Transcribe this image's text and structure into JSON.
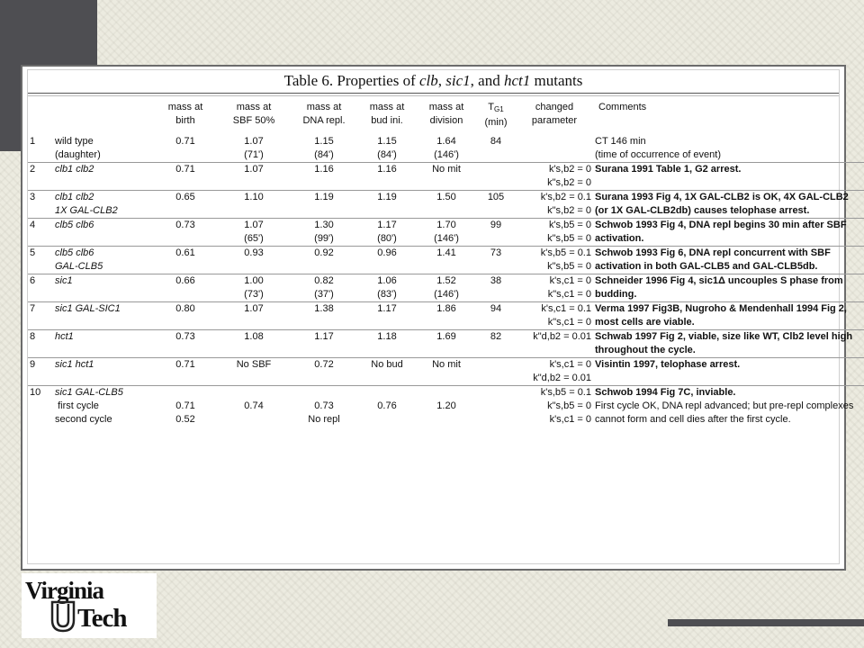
{
  "title": "Table 6.  Properties of clb, sic1, and hct1 mutants",
  "title_parts": {
    "prefix": "Table 6.  Properties of ",
    "clb": "clb",
    "sep1": ", ",
    "sic1": "sic1",
    "sep2": ", and ",
    "hct1": "hct1",
    "suffix": " mutants"
  },
  "headers": {
    "birth": [
      "mass at",
      "birth"
    ],
    "sbf": [
      "mass at",
      "SBF 50%"
    ],
    "dna": [
      "mass at",
      "DNA repl."
    ],
    "bud": [
      "mass at",
      "bud ini."
    ],
    "division": [
      "mass at",
      "division"
    ],
    "tg1": [
      "T",
      "G1",
      "(min)"
    ],
    "param": [
      "changed",
      "parameter"
    ],
    "comments": "Comments"
  },
  "rows": [
    {
      "num": "1",
      "name": [
        "wild type",
        "(daughter)"
      ],
      "name_italic": false,
      "birth": [
        "0.71",
        ""
      ],
      "sbf": [
        "1.07",
        "(71')"
      ],
      "dna": [
        "1.15",
        "(84')"
      ],
      "bud": [
        "1.15",
        "(84')"
      ],
      "division": [
        "1.64",
        "(146')"
      ],
      "tg1": "84",
      "param": [
        "",
        ""
      ],
      "comments": [
        "CT 146 min",
        "(time of occurrence of event)"
      ],
      "comments_bold": false
    },
    {
      "num": "2",
      "name": [
        "clb1 clb2",
        ""
      ],
      "name_italic": true,
      "birth": [
        "0.71",
        ""
      ],
      "sbf": [
        "1.07",
        ""
      ],
      "dna": [
        "1.16",
        ""
      ],
      "bud": [
        "1.16",
        ""
      ],
      "division": [
        "No mit",
        ""
      ],
      "tg1": "",
      "param": [
        "k's,b2 = 0",
        "k\"s,b2 = 0"
      ],
      "comments": [
        "Surana 1991 Table 1, G2 arrest.",
        ""
      ],
      "comments_bold": true
    },
    {
      "num": "3",
      "name": [
        "clb1 clb2",
        "1X GAL-CLB2"
      ],
      "name_italic": true,
      "birth": [
        "0.65",
        ""
      ],
      "sbf": [
        "1.10",
        ""
      ],
      "dna": [
        "1.19",
        ""
      ],
      "bud": [
        "1.19",
        ""
      ],
      "division": [
        "1.50",
        ""
      ],
      "tg1": "105",
      "param": [
        "k's,b2 = 0.1",
        "k\"s,b2 = 0"
      ],
      "comments": [
        "Surana 1993 Fig 4, 1X GAL-CLB2 is OK, 4X GAL-CLB2",
        "(or 1X GAL-CLB2db) causes telophase arrest."
      ],
      "comments_bold": true
    },
    {
      "num": "4",
      "name": [
        "clb5 clb6",
        ""
      ],
      "name_italic": true,
      "birth": [
        "0.73",
        ""
      ],
      "sbf": [
        "1.07",
        "(65')"
      ],
      "dna": [
        "1.30",
        "(99')"
      ],
      "bud": [
        "1.17",
        "(80')"
      ],
      "division": [
        "1.70",
        "(146')"
      ],
      "tg1": "99",
      "param": [
        "k's,b5 = 0",
        "k\"s,b5 = 0"
      ],
      "comments": [
        "Schwob 1993 Fig 4, DNA repl begins 30 min after SBF",
        "activation."
      ],
      "comments_bold": true
    },
    {
      "num": "5",
      "name": [
        "clb5 clb6",
        "GAL-CLB5"
      ],
      "name_italic": true,
      "birth": [
        "0.61",
        ""
      ],
      "sbf": [
        "0.93",
        ""
      ],
      "dna": [
        "0.92",
        ""
      ],
      "bud": [
        "0.96",
        ""
      ],
      "division": [
        "1.41",
        ""
      ],
      "tg1": "73",
      "param": [
        "k's,b5 = 0.1",
        "k\"s,b5 = 0"
      ],
      "comments": [
        "Schwob 1993 Fig 6, DNA repl concurrent with SBF",
        "activation in both GAL-CLB5 and GAL-CLB5db."
      ],
      "comments_bold": true
    },
    {
      "num": "6",
      "name": [
        "sic1",
        ""
      ],
      "name_italic": true,
      "birth": [
        "0.66",
        ""
      ],
      "sbf": [
        "1.00",
        "(73')"
      ],
      "dna": [
        "0.82",
        "(37')"
      ],
      "bud": [
        "1.06",
        "(83')"
      ],
      "division": [
        "1.52",
        "(146')"
      ],
      "tg1": "38",
      "param": [
        "k's,c1 = 0",
        "k\"s,c1 = 0"
      ],
      "comments": [
        "Schneider 1996 Fig 4, sic1Δ uncouples S phase from",
        "budding."
      ],
      "comments_bold": true
    },
    {
      "num": "7",
      "name": [
        "sic1 GAL-SIC1",
        ""
      ],
      "name_italic": true,
      "birth": [
        "0.80",
        ""
      ],
      "sbf": [
        "1.07",
        ""
      ],
      "dna": [
        "1.38",
        ""
      ],
      "bud": [
        "1.17",
        ""
      ],
      "division": [
        "1.86",
        ""
      ],
      "tg1": "94",
      "param": [
        "k's,c1 = 0.1",
        "k\"s,c1 = 0"
      ],
      "comments": [
        "Verma 1997 Fig3B, Nugroho & Mendenhall 1994 Fig 2,",
        "most cells are viable."
      ],
      "comments_bold": true
    },
    {
      "num": "8",
      "name": [
        "hct1",
        ""
      ],
      "name_italic": true,
      "birth": [
        "0.73",
        ""
      ],
      "sbf": [
        "1.08",
        ""
      ],
      "dna": [
        "1.17",
        ""
      ],
      "bud": [
        "1.18",
        ""
      ],
      "division": [
        "1.69",
        ""
      ],
      "tg1": "82",
      "param": [
        "k\"d,b2 = 0.01",
        ""
      ],
      "comments": [
        "Schwab 1997 Fig 2, viable, size like WT, Clb2 level high",
        "throughout the cycle."
      ],
      "comments_bold": true
    },
    {
      "num": "9",
      "name": [
        "sic1 hct1",
        ""
      ],
      "name_italic": true,
      "birth": [
        "0.71",
        ""
      ],
      "sbf": [
        "No SBF",
        ""
      ],
      "dna": [
        "0.72",
        ""
      ],
      "bud": [
        "No bud",
        ""
      ],
      "division": [
        "No mit",
        ""
      ],
      "tg1": "",
      "param": [
        "k's,c1 = 0",
        "k\"d,b2 = 0.01"
      ],
      "comments": [
        "Visintin 1997, telophase arrest.",
        ""
      ],
      "comments_bold": true
    }
  ],
  "row10": {
    "num": "10",
    "name": "sic1 GAL-CLB5",
    "sub1": "first cycle",
    "sub2": "second cycle",
    "birth": [
      "",
      "0.71",
      "0.52"
    ],
    "sbf": [
      "",
      "0.74",
      ""
    ],
    "dna": [
      "",
      "0.73",
      "No repl"
    ],
    "bud": [
      "",
      "0.76",
      ""
    ],
    "division": [
      "",
      "1.20",
      ""
    ],
    "param": [
      "k's,b5 = 0.1",
      "k\"s,b5 = 0",
      "k's,c1 = 0"
    ],
    "comment1": "Schwob 1994 Fig 7C, inviable.",
    "comment2": "First cycle OK, DNA repl advanced; but pre-repl complexes",
    "comment3": "cannot form and cell dies after the first cycle."
  },
  "logo": {
    "line1": "Virginia",
    "line2": "Tech"
  },
  "colors": {
    "background": "#ecebe0",
    "accent_dark": "#4e4e52",
    "panel": "#ffffff"
  }
}
